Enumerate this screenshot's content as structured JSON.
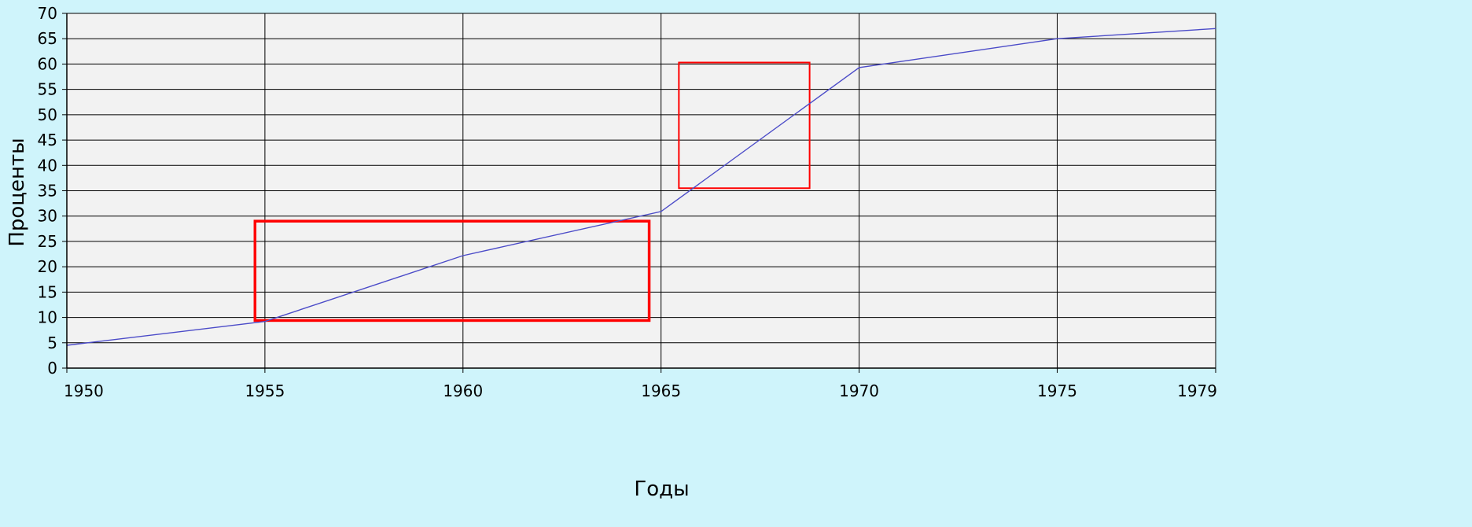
{
  "chart_data": {
    "type": "line",
    "title": "",
    "xlabel": "Годы",
    "ylabel": "Проценты",
    "xlim": [
      1950,
      1979
    ],
    "ylim": [
      0,
      70
    ],
    "x_ticks": [
      "1950",
      "1955",
      "1960",
      "1965",
      "1970",
      "1975",
      "1979"
    ],
    "y_ticks": [
      "0",
      "5",
      "10",
      "15",
      "20",
      "25",
      "30",
      "35",
      "40",
      "45",
      "50",
      "55",
      "60",
      "65",
      "70"
    ],
    "grid": true,
    "legend": "none",
    "series": [
      {
        "x": [
          1950,
          1955,
          1960,
          1965,
          1970,
          1975,
          1979
        ],
        "y": [
          4.5,
          9.2,
          22.2,
          30.9,
          59.3,
          65.0,
          67.0
        ],
        "color": "#4b4bc8"
      }
    ],
    "highlights": [
      {
        "x": [
          1954.75,
          1964.7
        ],
        "y": [
          9.4,
          29.0
        ],
        "color": "#ff0000",
        "stroke": "thick"
      },
      {
        "x": [
          1965.45,
          1968.75
        ],
        "y": [
          35.5,
          60.3
        ],
        "color": "#ff0000",
        "stroke": "thin"
      }
    ],
    "colors": {
      "background": "#cff4fb",
      "plot_area": "#f2f2f2",
      "grid": "#000000",
      "series": "#4b4bc8",
      "highlight": "#ff0000"
    }
  }
}
